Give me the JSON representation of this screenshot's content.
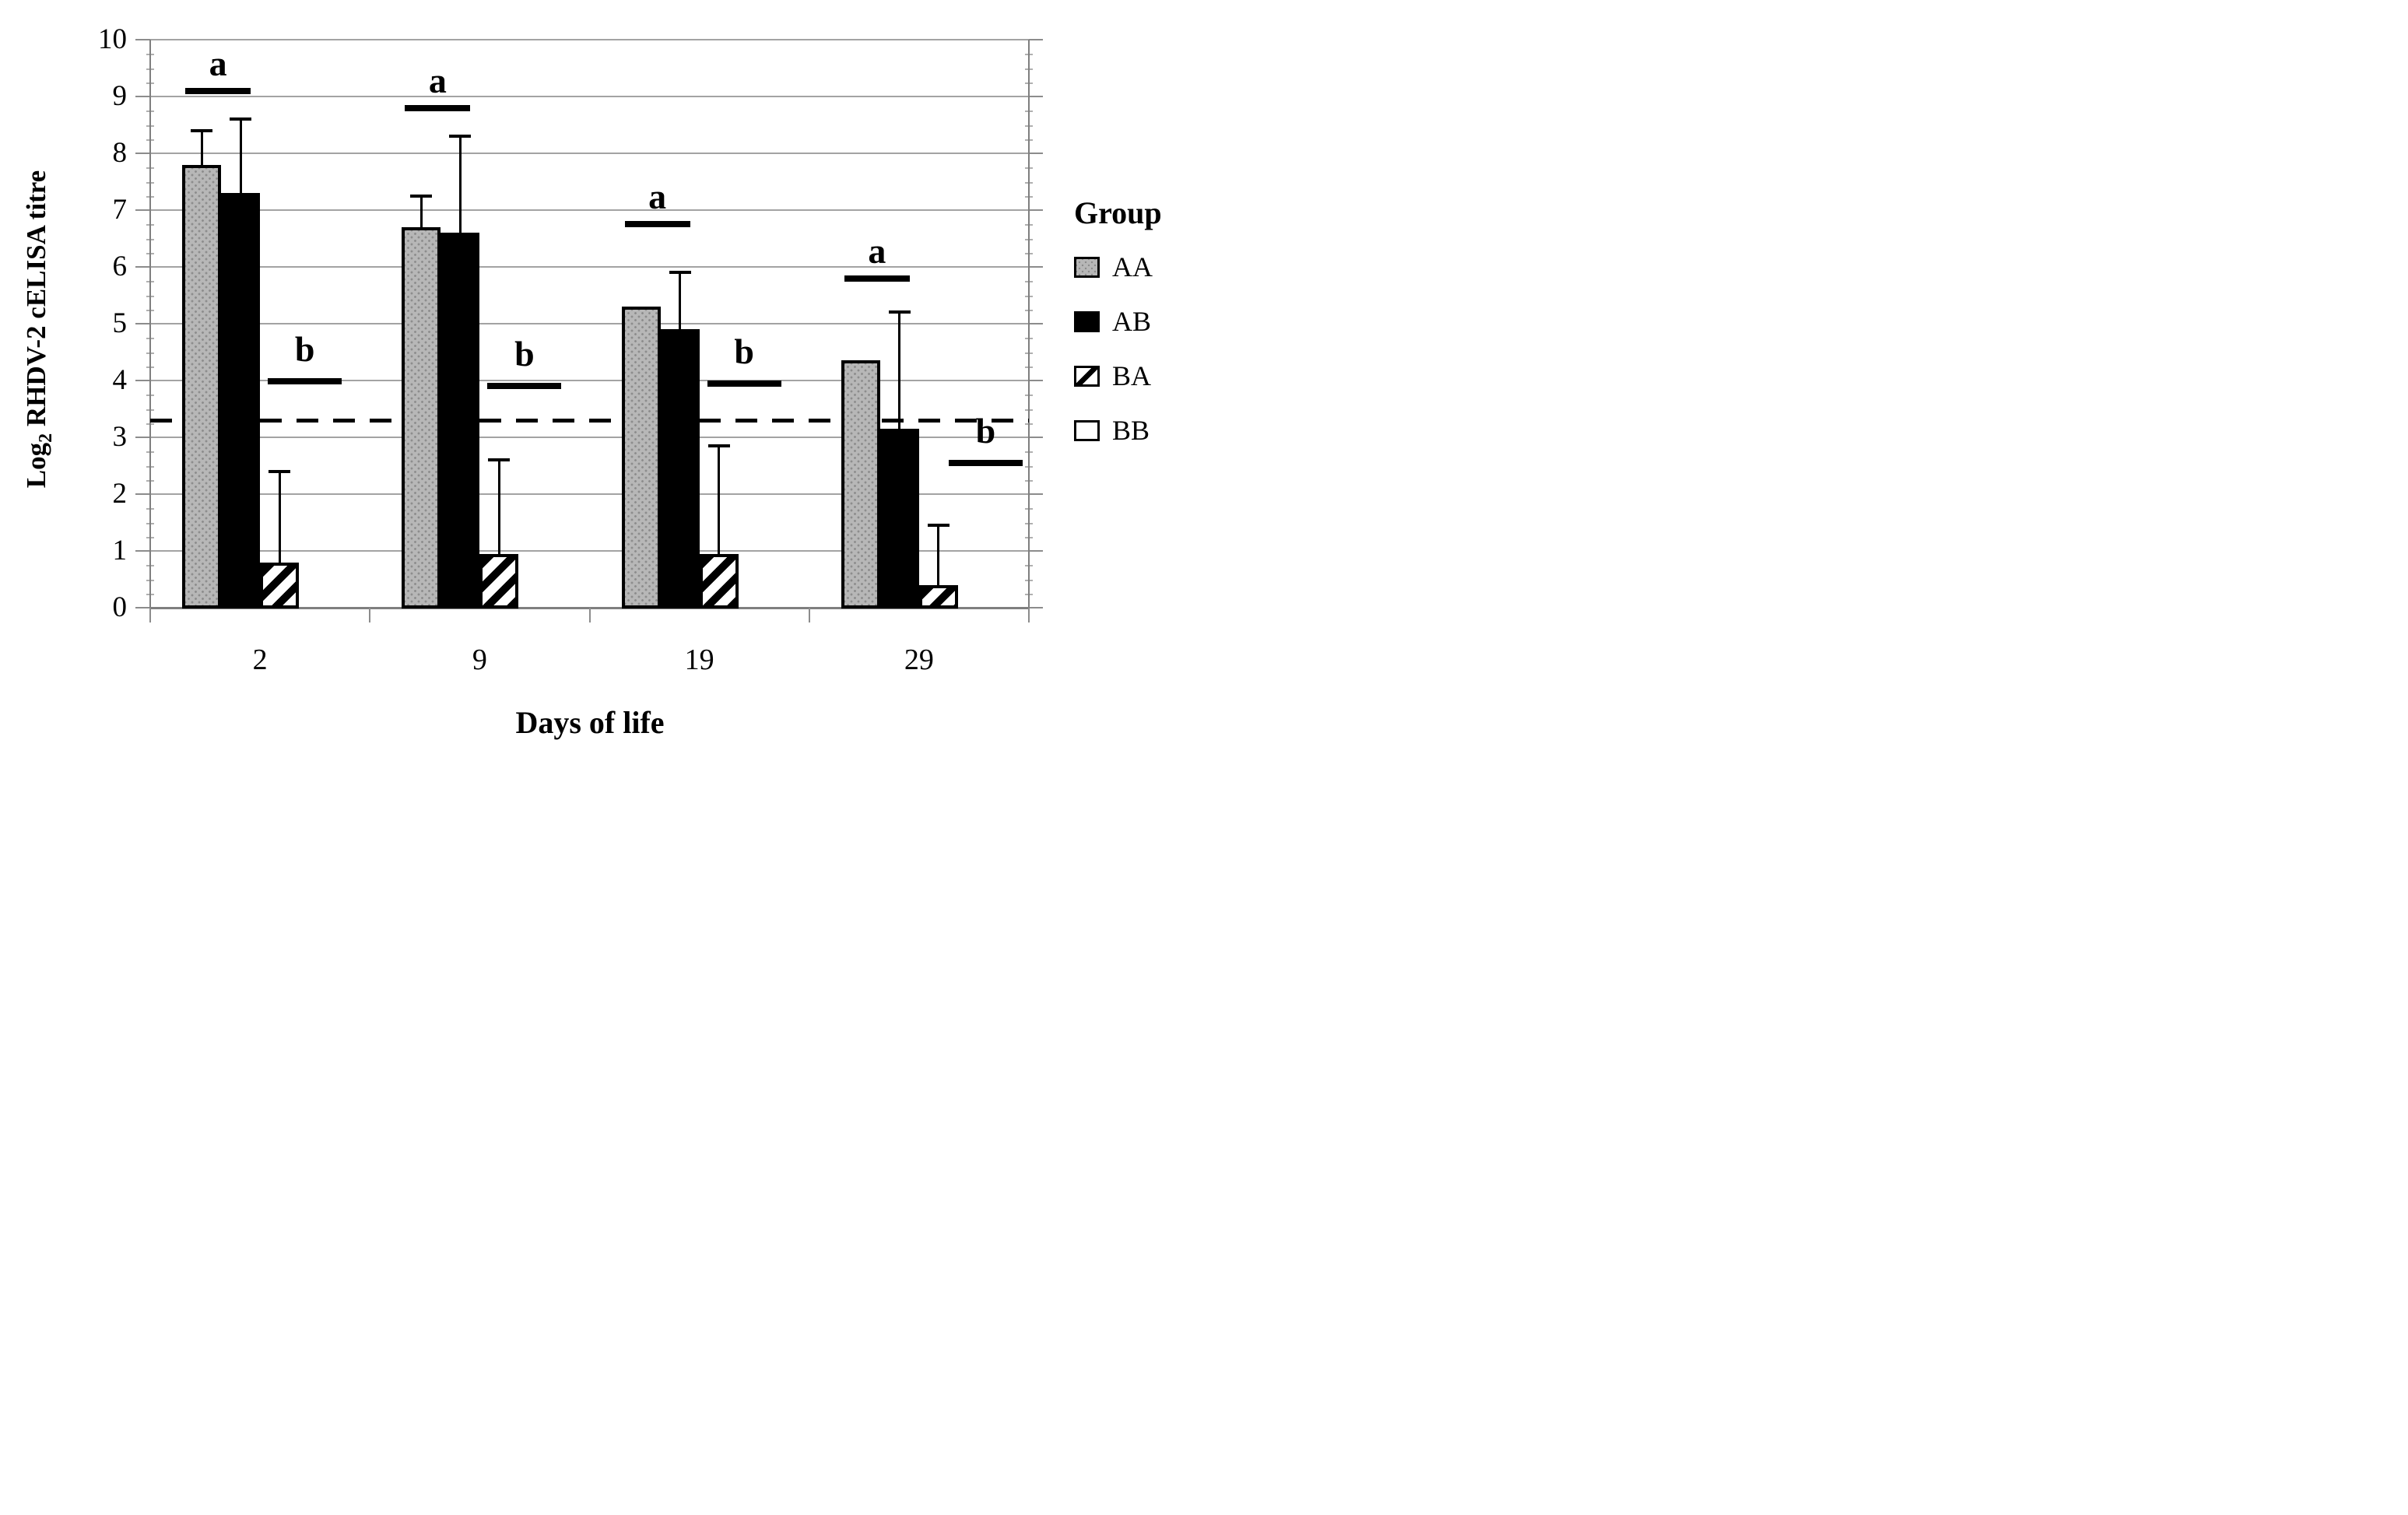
{
  "figure": {
    "type": "scientific-bar-chart",
    "x_axis_title": "Days of life",
    "y_axis_title_pre": "Log",
    "y_axis_title_sub": "2",
    "y_axis_title_post": " RHDV-2 cELISA titre",
    "legend_title": "Group"
  },
  "chart_data": {
    "type": "bar",
    "title": "",
    "xlabel": "Days of life",
    "ylabel": "Log2 RHDV-2 cELISA titre",
    "categories": [
      "2",
      "9",
      "19",
      "29"
    ],
    "ylim": [
      0,
      10
    ],
    "yticks": [
      0,
      1,
      2,
      3,
      4,
      5,
      6,
      7,
      8,
      9,
      10
    ],
    "grid": true,
    "legend_position": "right",
    "legend_title": "Group",
    "series": [
      {
        "name": "AA",
        "style": "gray-dotted",
        "values": [
          7.8,
          6.7,
          5.3,
          4.35
        ],
        "errors_top": [
          8.4,
          7.25,
          null,
          null
        ]
      },
      {
        "name": "AB",
        "style": "solid-black",
        "values": [
          7.3,
          6.6,
          4.9,
          3.15
        ],
        "errors_top": [
          8.6,
          8.3,
          5.9,
          5.2
        ]
      },
      {
        "name": "BA",
        "style": "diagonal-hatch",
        "values": [
          0.8,
          0.95,
          0.95,
          0.4
        ],
        "errors_top": [
          2.4,
          2.6,
          2.85,
          1.45
        ]
      },
      {
        "name": "BB",
        "style": "white",
        "values": [
          0,
          0,
          0,
          0
        ],
        "errors_top": [
          null,
          null,
          null,
          null
        ]
      }
    ],
    "threshold_line": {
      "y": 3.3,
      "style": "dashed",
      "color": "#000000"
    },
    "significance_markers": [
      {
        "category": "2",
        "label": "a",
        "line_y": 9.1,
        "span": "AA+AB",
        "x_shift": 0
      },
      {
        "category": "2",
        "label": "b",
        "line_y": 3.98,
        "span": "BA+BB",
        "x_shift": 0
      },
      {
        "category": "9",
        "label": "a",
        "line_y": 8.8,
        "span": "AA+AB",
        "x_shift": 0
      },
      {
        "category": "9",
        "label": "b",
        "line_y": 3.9,
        "span": "BA+BB",
        "x_shift": 0
      },
      {
        "category": "19",
        "label": "a",
        "line_y": 6.75,
        "span": "AA+AB",
        "x_shift": 0
      },
      {
        "category": "19",
        "label": "b",
        "line_y": 3.95,
        "span": "BA+BB",
        "x_shift": 0
      },
      {
        "category": "29",
        "label": "a",
        "line_y": 5.8,
        "span": "AA+AB",
        "x_shift": 0
      },
      {
        "category": "29",
        "label": "b",
        "line_y": 2.55,
        "span": "BA+BB",
        "x_shift": 28
      }
    ],
    "colors": {
      "AA_fill": "#b7b7b7",
      "AA_dots": "#8d8d8d",
      "AB_fill": "#000000",
      "BA_hatch": "#000000",
      "bar_border": "#000000",
      "gridline": "#a3a3a3",
      "axis": "#7f7f7f",
      "background": "#ffffff",
      "threshold": "#000000"
    }
  }
}
